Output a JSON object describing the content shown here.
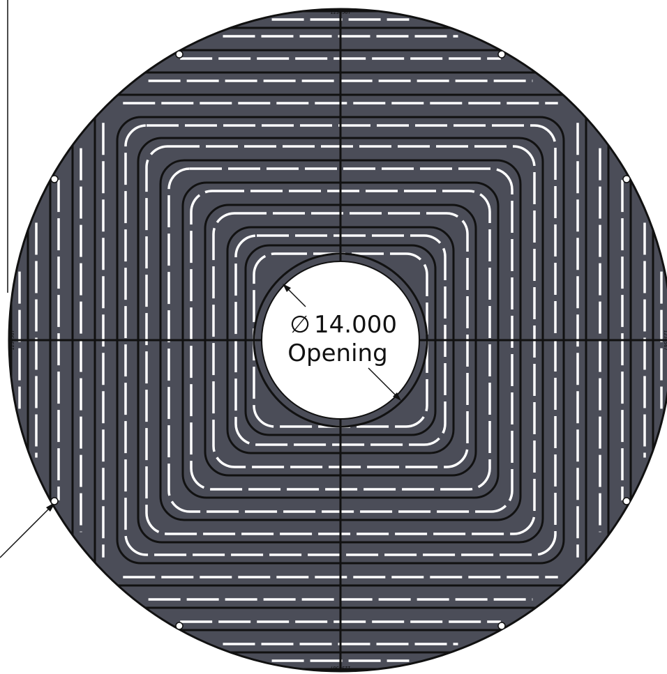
{
  "drawing": {
    "dimension": {
      "symbol": "∅",
      "value": "14.000",
      "label": "Opening"
    },
    "rim_marks": {
      "top": "1234567",
      "bottom": "1234567",
      "left": "1234567",
      "right": "1234567"
    },
    "colors": {
      "fill": "#4b4d58",
      "stroke": "#111111",
      "slot": "#ffffff",
      "background": "#ffffff"
    }
  }
}
